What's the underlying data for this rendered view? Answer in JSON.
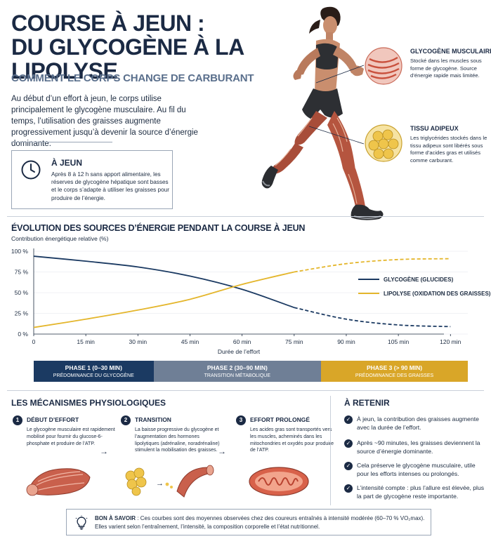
{
  "header": {
    "title_line1": "COURSE À JEUN :",
    "title_line2": "DU GLYCOGÈNE À LA LIPOLYSE",
    "subtitle": "COMMENT LE CORPS CHANGE DE CARBURANT",
    "intro": "Au début d’un effort à jeun, le corps utilise principalement le glycogène musculaire. Au fil du temps, l’utilisation des graisses augmente progressivement jusqu’à devenir la source d’énergie dominante."
  },
  "fasting_box": {
    "icon": "clock-icon",
    "title": "À JEUN",
    "text": "Après 8 à 12 h sans apport alimentaire, les réserves de glycogène hépatique sont basses et le corps s’adapte à utiliser les graisses pour produire de l’énergie."
  },
  "callouts": {
    "glycogen": {
      "title": "GLYCOGÈNE MUSCULAIRE",
      "text": "Stocké dans les muscles sous forme de glycogène. Source d’énergie rapide mais limitée."
    },
    "adipose": {
      "title": "TISSU ADIPEUX",
      "text": "Les triglycérides stockés dans le tissu adipeux sont libérés sous forme d’acides gras et utilisés comme carburant."
    }
  },
  "chart_section": {
    "title": "ÉVOLUTION DES SOURCES D’ÉNERGIE PENDANT LA COURSE À JEUN",
    "ylabel": "Contribution énergétique relative (%)",
    "xlabel": "Durée de l’effort"
  },
  "chart_data": {
    "type": "line",
    "x": [
      0,
      15,
      30,
      45,
      60,
      75,
      90,
      105,
      120
    ],
    "x_tick_labels": [
      "0",
      "15 min",
      "30 min",
      "45 min",
      "60 min",
      "75 min",
      "90 min",
      "105 min",
      "120 min"
    ],
    "y_tick_labels": [
      "0 %",
      "25 %",
      "50 %",
      "75 %",
      "100 %"
    ],
    "xlim": [
      0,
      125
    ],
    "ylim": [
      0,
      100
    ],
    "xlabel": "Durée de l’effort",
    "ylabel": "Contribution énergétique relative (%)",
    "solid_until": 75,
    "legend_position": "right",
    "series": [
      {
        "name": "GLYCOGÈNE (GLUCIDES)",
        "color": "#1b3a62",
        "values": [
          94,
          88,
          81,
          70,
          54,
          32,
          18,
          11,
          9
        ]
      },
      {
        "name": "LIPOLYSE (OXIDATION DES GRAISSES)",
        "color": "#e4b62c",
        "values": [
          8,
          18,
          29,
          42,
          60,
          75,
          85,
          90,
          91
        ]
      }
    ]
  },
  "phases": [
    {
      "title": "PHASE 1 (0–30 MIN)",
      "subtitle": "PRÉDOMINANCE DU GLYCOGÈNE",
      "color": "#1b3a62"
    },
    {
      "title": "PHASE 2 (30–90 MIN)",
      "subtitle": "TRANSITION MÉTABOLIQUE",
      "color": "#6f7f96"
    },
    {
      "title": "PHASE 3 (> 90 MIN)",
      "subtitle": "PRÉDOMINANCE DES GRAISSES",
      "color": "#d9a628"
    }
  ],
  "mechanisms": {
    "title": "LES MÉCANISMES PHYSIOLOGIQUES",
    "steps": [
      {
        "num": "1",
        "title": "DÉBUT D’EFFORT",
        "text": "Le glycogène musculaire est rapidement mobilisé pour fournir du glucose-6-phosphate et produire de l’ATP."
      },
      {
        "num": "2",
        "title": "TRANSITION",
        "text": "La baisse progressive du glycogène et l’augmentation des hormones lipolytiques (adrénaline, noradrénaline) stimulent la mobilisation des graisses."
      },
      {
        "num": "3",
        "title": "EFFORT PROLONGÉ",
        "text": "Les acides gras sont transportés vers les muscles, acheminés dans les mitochondries et oxydés pour produire de l’ATP."
      }
    ]
  },
  "retenir": {
    "title": "À RETENIR",
    "items": [
      "À jeun, la contribution des graisses augmente avec la durée de l’effort.",
      "Après ~90 minutes, les graisses deviennent la source d’énergie dominante.",
      "Cela préserve le glycogène musculaire, utile pour les efforts intenses ou prolongés.",
      "L’intensité compte : plus l’allure est élevée, plus la part de glycogène reste importante."
    ]
  },
  "tip": {
    "label": "BON À SAVOIR",
    "text": " : Ces courbes sont des moyennes observées chez des coureurs entraînés à intensité modérée (60–70 % VO₂max). Elles varient selon l’entraînement, l’intensité, la composition corporelle et l’état nutritionnel."
  }
}
